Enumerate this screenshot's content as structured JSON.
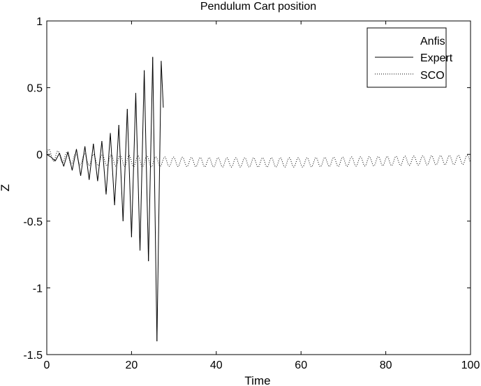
{
  "chart_data": {
    "type": "line",
    "title": "Pendulum Cart position",
    "xlabel": "Time",
    "ylabel": "Z",
    "xlim": [
      0,
      100
    ],
    "ylim": [
      -1.5,
      1
    ],
    "xticks": [
      "0",
      "20",
      "40",
      "60",
      "80",
      "100"
    ],
    "yticks": [
      "1",
      "0.5",
      "0",
      "-0.5",
      "-1",
      "-1.5"
    ],
    "grid": false,
    "legend_position": "top-right",
    "series": [
      {
        "name": "Anfis",
        "style": "none",
        "points": []
      },
      {
        "name": "Expert",
        "style": "solid",
        "points": [
          [
            0,
            0.0
          ],
          [
            1,
            -0.02
          ],
          [
            2,
            -0.05
          ],
          [
            3,
            0.01
          ],
          [
            4,
            -0.09
          ],
          [
            5,
            0.02
          ],
          [
            6,
            -0.12
          ],
          [
            7,
            0.04
          ],
          [
            8,
            -0.16
          ],
          [
            9,
            0.06
          ],
          [
            10,
            -0.19
          ],
          [
            11,
            0.08
          ],
          [
            12,
            -0.2
          ],
          [
            13,
            0.1
          ],
          [
            14,
            -0.3
          ],
          [
            15,
            0.16
          ],
          [
            16,
            -0.38
          ],
          [
            17,
            0.22
          ],
          [
            18,
            -0.5
          ],
          [
            19,
            0.34
          ],
          [
            20,
            -0.62
          ],
          [
            21,
            0.46
          ],
          [
            22,
            -0.72
          ],
          [
            23,
            0.63
          ],
          [
            24,
            -0.8
          ],
          [
            25,
            0.73
          ],
          [
            26,
            -1.4
          ],
          [
            27,
            0.7
          ],
          [
            27.5,
            0.35
          ]
        ]
      },
      {
        "name": "SCO",
        "style": "dotted",
        "amplitude": 0.035,
        "points": [
          [
            0,
            0.0
          ],
          [
            5,
            -0.03
          ],
          [
            10,
            -0.04
          ],
          [
            20,
            -0.05
          ],
          [
            40,
            -0.06
          ],
          [
            60,
            -0.06
          ],
          [
            80,
            -0.05
          ],
          [
            100,
            -0.04
          ]
        ]
      }
    ]
  }
}
